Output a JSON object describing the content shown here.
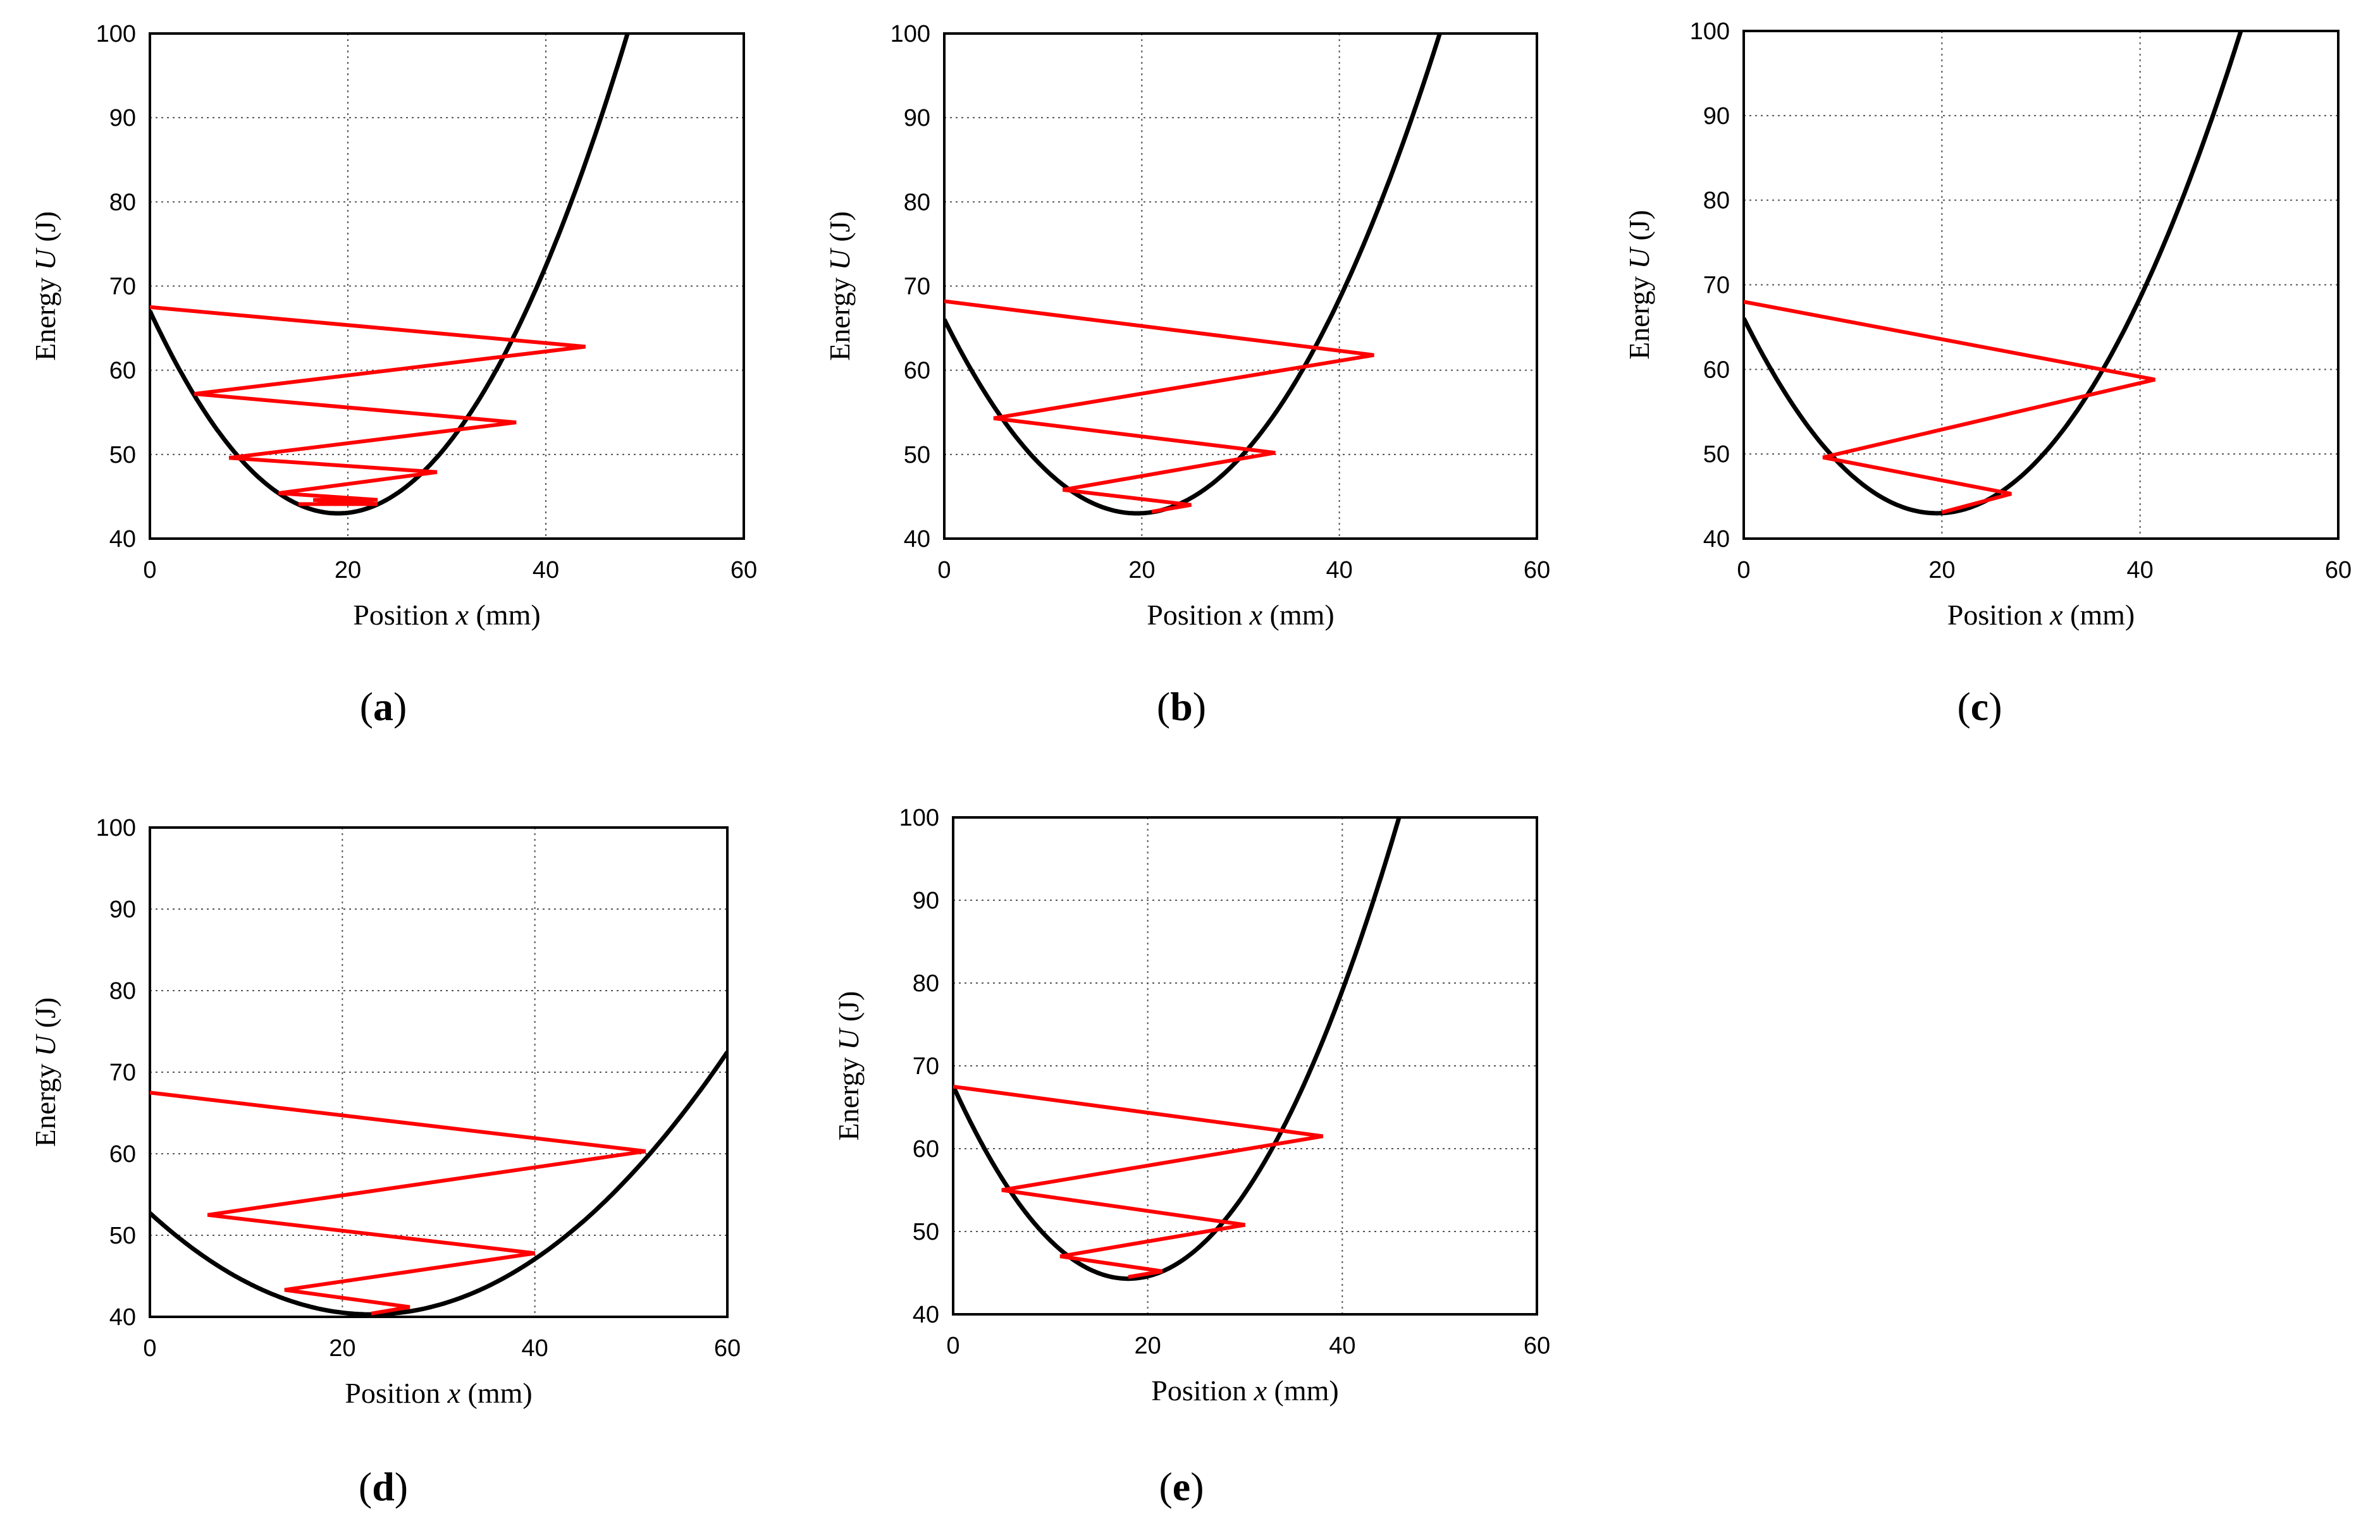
{
  "colors": {
    "curve": "#000000",
    "trajectory": "#ff0000",
    "grid": "#555555",
    "background": "#ffffff"
  },
  "chart_data": [
    {
      "id": "a",
      "panel_label": "a",
      "type": "line",
      "xlabel": "Position",
      "xlabel_var": "x",
      "xlabel_unit": "(mm)",
      "ylabel": "Energy",
      "ylabel_var": "U",
      "ylabel_unit": "(J)",
      "xlim": [
        0,
        60
      ],
      "ylim": [
        40,
        100
      ],
      "xticks": [
        0,
        20,
        40,
        60
      ],
      "yticks": [
        40,
        50,
        60,
        70,
        80,
        90,
        100
      ],
      "grid": true,
      "series": [
        {
          "name": "potential energy",
          "color": "#000000",
          "curve": {
            "x0": 19,
            "ymin": 43,
            "k": 0.0666
          }
        },
        {
          "name": "trajectory",
          "color": "#ff0000",
          "x": [
            0,
            44,
            4.5,
            37,
            8,
            29,
            13,
            23,
            16.5,
            23,
            15
          ],
          "y": [
            67.5,
            62.8,
            57.2,
            53.8,
            49.6,
            47.9,
            45.4,
            44.6,
            44.6,
            44.1,
            44.1
          ]
        }
      ]
    },
    {
      "id": "b",
      "panel_label": "b",
      "type": "line",
      "xlabel": "Position",
      "xlabel_var": "x",
      "xlabel_unit": "(mm)",
      "ylabel": "Energy",
      "ylabel_var": "U",
      "ylabel_unit": "(J)",
      "xlim": [
        0,
        60
      ],
      "ylim": [
        40,
        100
      ],
      "xticks": [
        0,
        20,
        40,
        60
      ],
      "yticks": [
        40,
        50,
        60,
        70,
        80,
        90,
        100
      ],
      "grid": true,
      "series": [
        {
          "name": "potential energy",
          "color": "#000000",
          "curve": {
            "x0": 19.5,
            "ymin": 43,
            "k": 0.0606
          }
        },
        {
          "name": "trajectory",
          "color": "#ff0000",
          "x": [
            0,
            43.5,
            5,
            33.5,
            12,
            25,
            21
          ],
          "y": [
            68.2,
            61.8,
            54.3,
            50.2,
            45.8,
            44.0,
            43.2
          ]
        }
      ]
    },
    {
      "id": "c",
      "panel_label": "c",
      "type": "line",
      "xlabel": "Position",
      "xlabel_var": "x",
      "xlabel_unit": "(mm)",
      "ylabel": "Energy",
      "ylabel_var": "U",
      "ylabel_unit": "(J)",
      "xlim": [
        0,
        60
      ],
      "ylim": [
        40,
        100
      ],
      "xticks": [
        0,
        20,
        40,
        60
      ],
      "yticks": [
        40,
        50,
        60,
        70,
        80,
        90,
        100
      ],
      "grid": true,
      "series": [
        {
          "name": "potential energy",
          "color": "#000000",
          "curve": {
            "x0": 19.5,
            "ymin": 43,
            "k": 0.0606
          }
        },
        {
          "name": "trajectory",
          "color": "#ff0000",
          "x": [
            0,
            41.5,
            8,
            27,
            20
          ],
          "y": [
            68,
            58.8,
            49.6,
            45.3,
            43.1
          ]
        }
      ]
    },
    {
      "id": "d",
      "panel_label": "d",
      "type": "line",
      "xlabel": "Position",
      "xlabel_var": "x",
      "xlabel_unit": "(mm)",
      "ylabel": "Energy",
      "ylabel_var": "U",
      "ylabel_unit": "(J)",
      "xlim": [
        0,
        60
      ],
      "ylim": [
        40,
        100
      ],
      "xticks": [
        0,
        20,
        40,
        60
      ],
      "yticks": [
        40,
        50,
        60,
        70,
        80,
        90,
        100
      ],
      "grid": true,
      "series": [
        {
          "name": "potential energy",
          "color": "#000000",
          "curve": {
            "x0": 23,
            "ymin": 40.3,
            "k": 0.0235
          }
        },
        {
          "name": "trajectory",
          "color": "#ff0000",
          "x": [
            0,
            51.5,
            6,
            40,
            14,
            27,
            23
          ],
          "y": [
            67.5,
            60.3,
            52.5,
            47.8,
            43.3,
            41.2,
            40.4
          ]
        }
      ]
    },
    {
      "id": "e",
      "panel_label": "e",
      "type": "line",
      "xlabel": "Position",
      "xlabel_var": "x",
      "xlabel_unit": "(mm)",
      "ylabel": "Energy",
      "ylabel_var": "U",
      "ylabel_unit": "(J)",
      "xlim": [
        0,
        60
      ],
      "ylim": [
        40,
        100
      ],
      "xticks": [
        0,
        20,
        40,
        60
      ],
      "yticks": [
        40,
        50,
        60,
        70,
        80,
        90,
        100
      ],
      "grid": true,
      "series": [
        {
          "name": "potential energy",
          "color": "#000000",
          "curve": {
            "x0": 18,
            "ymin": 44.3,
            "k": 0.0719
          }
        },
        {
          "name": "trajectory",
          "color": "#ff0000",
          "x": [
            0,
            38,
            5,
            30,
            11,
            21.5,
            18
          ],
          "y": [
            67.5,
            61.5,
            55,
            50.8,
            47,
            45.2,
            44.5
          ]
        }
      ]
    }
  ]
}
